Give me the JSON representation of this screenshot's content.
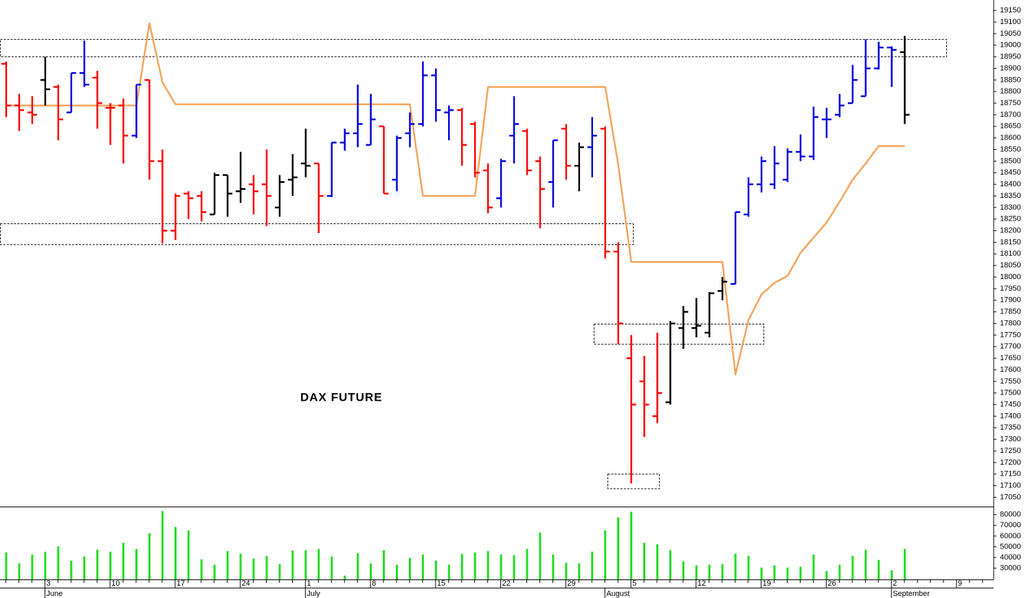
{
  "chart_data": {
    "type": "ohlc",
    "title": "DAX FUTURE",
    "categories": [
      null,
      null,
      null,
      "3",
      null,
      null,
      null,
      null,
      "10",
      null,
      null,
      null,
      null,
      "17",
      null,
      null,
      null,
      null,
      "24",
      null,
      null,
      null,
      null,
      "1",
      null,
      null,
      null,
      null,
      "8",
      null,
      null,
      null,
      null,
      "15",
      null,
      null,
      null,
      null,
      "22",
      null,
      null,
      null,
      null,
      "29",
      null,
      null,
      null,
      null,
      "5",
      null,
      null,
      null,
      null,
      "12",
      null,
      null,
      null,
      null,
      "19",
      null,
      null,
      null,
      null,
      "26",
      null,
      null,
      null,
      null,
      "2",
      null,
      null,
      null,
      null,
      "9",
      null,
      null
    ],
    "months": [
      null,
      null,
      null,
      "June",
      null,
      null,
      null,
      null,
      null,
      null,
      null,
      null,
      null,
      null,
      null,
      null,
      null,
      null,
      null,
      null,
      null,
      null,
      null,
      "July",
      null,
      null,
      null,
      null,
      null,
      null,
      null,
      null,
      null,
      null,
      null,
      null,
      null,
      null,
      null,
      null,
      null,
      null,
      null,
      null,
      null,
      null,
      "August",
      null,
      null,
      null,
      null,
      null,
      null,
      null,
      null,
      null,
      null,
      null,
      null,
      null,
      null,
      null,
      null,
      null,
      null,
      null,
      null,
      null,
      "September",
      null,
      null,
      null,
      null,
      null,
      null,
      null
    ],
    "high": [
      18930,
      18790,
      18780,
      18950,
      18830,
      18880,
      19020,
      18890,
      18750,
      18770,
      18830,
      18850,
      18550,
      18360,
      18370,
      18370,
      18450,
      18440,
      18540,
      18440,
      18550,
      18440,
      18530,
      18640,
      18490,
      18580,
      18640,
      18830,
      18790,
      18650,
      18610,
      18710,
      18930,
      18900,
      18740,
      18730,
      18670,
      18490,
      18510,
      18780,
      18640,
      18520,
      18590,
      18660,
      18580,
      18690,
      18650,
      18150,
      17750,
      17660,
      17760,
      17810,
      17875,
      17910,
      17935,
      18000,
      18280,
      18430,
      18520,
      18565,
      18555,
      18615,
      18735,
      18730,
      18790,
      18915,
      19025,
      19015,
      18995,
      19040,
      null,
      null,
      null,
      null,
      null,
      null
    ],
    "low": [
      18690,
      18630,
      18660,
      18740,
      18590,
      18710,
      18820,
      18640,
      18570,
      18490,
      18600,
      18420,
      18145,
      18160,
      18250,
      18240,
      18270,
      18260,
      18320,
      18270,
      18220,
      18260,
      18350,
      18430,
      18190,
      18345,
      18545,
      18560,
      18570,
      18360,
      18370,
      18560,
      18650,
      18670,
      18590,
      18480,
      18430,
      18275,
      18300,
      18490,
      18440,
      18210,
      18300,
      18420,
      18370,
      18430,
      18080,
      17710,
      17110,
      17310,
      17370,
      17450,
      17690,
      17740,
      17740,
      17900,
      17970,
      18260,
      18365,
      18380,
      18410,
      18500,
      18505,
      18600,
      18690,
      18750,
      18780,
      18895,
      18820,
      18660,
      null,
      null,
      null,
      null,
      null,
      null
    ],
    "open": [
      18920,
      18740,
      18710,
      18850,
      18820,
      18710,
      18880,
      18860,
      18730,
      18740,
      18610,
      18850,
      18500,
      18200,
      18360,
      18350,
      18270,
      18440,
      18370,
      18400,
      18400,
      18300,
      18420,
      18490,
      18490,
      18350,
      18580,
      18620,
      18570,
      18650,
      18420,
      18620,
      18660,
      18870,
      18710,
      18720,
      18660,
      18460,
      18340,
      18610,
      18630,
      18500,
      18410,
      18640,
      18480,
      18560,
      18640,
      18110,
      17650,
      17550,
      17400,
      17460,
      17780,
      17780,
      17760,
      17940,
      17970,
      18270,
      18400,
      18400,
      18420,
      18540,
      18520,
      18680,
      18700,
      18750,
      18780,
      18900,
      18990,
      18970,
      null,
      null,
      null,
      null,
      null,
      null
    ],
    "close": [
      18740,
      18720,
      18700,
      18810,
      18680,
      18880,
      18830,
      18750,
      18730,
      18610,
      18830,
      18500,
      18200,
      18350,
      18340,
      18280,
      18440,
      18360,
      18380,
      18370,
      18350,
      18410,
      18430,
      18480,
      18350,
      18580,
      18620,
      18660,
      18680,
      18360,
      18600,
      18660,
      18870,
      18720,
      18720,
      18570,
      18450,
      18300,
      18500,
      18660,
      18460,
      18380,
      18590,
      18480,
      18560,
      18610,
      18110,
      17800,
      17450,
      17450,
      17500,
      17800,
      17850,
      17790,
      17930,
      17980,
      18280,
      18400,
      18500,
      18490,
      18540,
      18520,
      18690,
      18680,
      18740,
      18850,
      18900,
      18990,
      18980,
      18700,
      null,
      null,
      null,
      null,
      null,
      null
    ],
    "bar_colors": [
      "#ff0000",
      "#ff0000",
      "#ff0000",
      "#000000",
      "#ff0000",
      "#0000dd",
      "#0000dd",
      "#ff0000",
      "#ff0000",
      "#ff0000",
      "#0000dd",
      "#ff0000",
      "#ff0000",
      "#ff0000",
      "#ff0000",
      "#ff0000",
      "#000000",
      "#000000",
      "#000000",
      "#ff0000",
      "#ff0000",
      "#000000",
      "#000000",
      "#000000",
      "#ff0000",
      "#0000dd",
      "#0000dd",
      "#0000dd",
      "#0000dd",
      "#ff0000",
      "#0000dd",
      "#0000dd",
      "#0000dd",
      "#0000dd",
      "#0000dd",
      "#ff0000",
      "#ff0000",
      "#ff0000",
      "#0000dd",
      "#0000dd",
      "#ff0000",
      "#ff0000",
      "#0000dd",
      "#ff0000",
      "#000000",
      "#0000dd",
      "#ff0000",
      "#ff0000",
      "#ff0000",
      "#ff0000",
      "#ff0000",
      "#000000",
      "#000000",
      "#000000",
      "#000000",
      "#000000",
      "#0000dd",
      "#0000dd",
      "#0000dd",
      "#0000dd",
      "#0000dd",
      "#0000dd",
      "#0000dd",
      "#0000dd",
      "#0000dd",
      "#0000dd",
      "#0000dd",
      "#0000dd",
      "#0000dd",
      "#000000",
      null,
      null,
      null,
      null,
      null,
      null
    ],
    "line": {
      "color": "#f5a35a",
      "values": [
        18740,
        18740,
        18740,
        18740,
        18740,
        18740,
        18740,
        18740,
        18740,
        18740,
        18740,
        19095,
        18840,
        18745,
        18745,
        18745,
        18745,
        18745,
        18745,
        18745,
        18745,
        18745,
        18745,
        18745,
        18745,
        18745,
        18745,
        18745,
        18745,
        18745,
        18745,
        18745,
        18350,
        18350,
        18350,
        18350,
        18350,
        18820,
        18820,
        18820,
        18820,
        18820,
        18820,
        18820,
        18820,
        18820,
        18820,
        18485,
        18065,
        18065,
        18065,
        18065,
        18065,
        18065,
        18065,
        18065,
        17580,
        17815,
        17925,
        17975,
        18005,
        18105,
        18170,
        18235,
        18325,
        18420,
        18490,
        18565,
        18565,
        18565,
        null,
        null,
        null,
        null,
        null,
        null
      ]
    },
    "zones": [
      {
        "high": 19025,
        "low": 18950
      },
      {
        "high": 18230,
        "low": 18140
      },
      {
        "high": 17797,
        "low": 17710
      },
      {
        "high": 17150,
        "low": 17087
      }
    ],
    "ylim": [
      17010,
      19195
    ],
    "yticks": [
      17050,
      17100,
      17150,
      17200,
      17250,
      17300,
      17350,
      17400,
      17450,
      17500,
      17550,
      17600,
      17650,
      17700,
      17750,
      17800,
      17850,
      17900,
      17950,
      18000,
      18050,
      18100,
      18150,
      18200,
      18250,
      18300,
      18350,
      18400,
      18450,
      18500,
      18550,
      18600,
      18650,
      18700,
      18750,
      18800,
      18850,
      18900,
      18950,
      19000,
      19050,
      19100,
      19150
    ],
    "grid": false,
    "volume": {
      "color": "#22dd22",
      "ylim": [
        19500,
        87500
      ],
      "yticks": [
        30000,
        40000,
        50000,
        60000,
        70000,
        80000
      ],
      "values": [
        44700,
        34500,
        42800,
        45400,
        50500,
        37000,
        41000,
        47300,
        45400,
        53700,
        48000,
        62700,
        83200,
        68500,
        65300,
        38300,
        33200,
        46000,
        43500,
        39000,
        41500,
        33800,
        46700,
        46700,
        48000,
        41000,
        23000,
        44100,
        34500,
        46700,
        33200,
        39600,
        42800,
        37000,
        33200,
        43500,
        44700,
        46000,
        42800,
        42200,
        48000,
        63300,
        42800,
        35100,
        34500,
        45400,
        65300,
        77400,
        82600,
        53700,
        52400,
        46700,
        36400,
        32600,
        33200,
        33800,
        43500,
        41500,
        30600,
        32600,
        30600,
        31300,
        42800,
        27400,
        33200,
        41500,
        47300,
        37700,
        28100,
        48000,
        null,
        null,
        null,
        null,
        null,
        null
      ]
    }
  }
}
